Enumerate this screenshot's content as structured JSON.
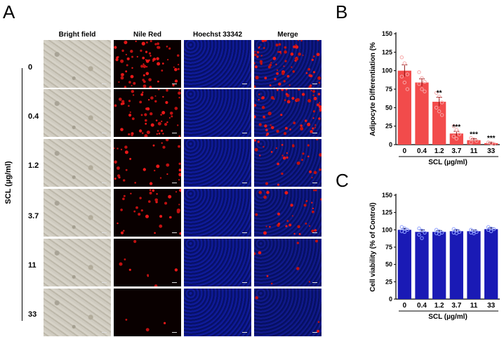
{
  "figure": {
    "panel_a": {
      "letter": "A",
      "columns": [
        "Bright field",
        "Nile Red",
        "Hoechst 33342",
        "Merge"
      ],
      "rows": [
        "0",
        "0.4",
        "1.2",
        "3.7",
        "11",
        "33"
      ],
      "row_axis_label": "SCL (µg/ml)"
    },
    "panel_b": {
      "letter": "B"
    },
    "panel_c": {
      "letter": "C"
    }
  },
  "colors": {
    "bar_b": "#f24b4b",
    "bar_c": "#1a1ab5",
    "dot_b": "#f7a8a8",
    "dot_c": "#8fa0ff"
  },
  "chart_data": [
    {
      "type": "bar",
      "categories": [
        "0",
        "0.4",
        "1.2",
        "3.7",
        "11",
        "33"
      ],
      "values": [
        100,
        84,
        58,
        15,
        6,
        2
      ],
      "errors": [
        8,
        5,
        6,
        3,
        2,
        1
      ],
      "points": [
        [
          118,
          110,
          95,
          92,
          84,
          75
        ],
        [
          98,
          90,
          85,
          82,
          75,
          72
        ],
        [
          70,
          65,
          57,
          50,
          45,
          40
        ],
        [
          25,
          20,
          14,
          11,
          8
        ],
        [
          9,
          7,
          5,
          3
        ],
        [
          3,
          2,
          1
        ]
      ],
      "significance": [
        "",
        "",
        "**",
        "***",
        "***",
        "***"
      ],
      "xlabel": "SCL (µg/ml)",
      "ylabel": "Adipocyte Differentiation (%",
      "ylim": [
        0,
        150
      ],
      "yticks": [
        "0",
        "25",
        "50",
        "75",
        "100",
        "125",
        "150"
      ]
    },
    {
      "type": "bar",
      "categories": [
        "0",
        "0.4",
        "1.2",
        "3.7",
        "11",
        "33"
      ],
      "values": [
        100,
        97,
        97,
        98,
        98,
        101
      ],
      "errors": [
        2,
        3,
        2,
        2,
        2,
        2
      ],
      "points": [
        [
          104,
          102,
          100,
          98,
          97
        ],
        [
          102,
          99,
          96,
          93,
          88
        ],
        [
          100,
          98,
          96,
          95,
          94
        ],
        [
          101,
          99,
          97,
          96,
          95
        ],
        [
          100,
          98,
          97,
          96,
          95
        ],
        [
          104,
          102,
          101,
          100,
          98
        ]
      ],
      "xlabel": "SCL (µg/ml)",
      "ylabel": "Cell viability (% of Control)",
      "ylim": [
        0,
        150
      ],
      "yticks": [
        "0",
        "25",
        "50",
        "75",
        "100",
        "125",
        "150"
      ]
    }
  ]
}
